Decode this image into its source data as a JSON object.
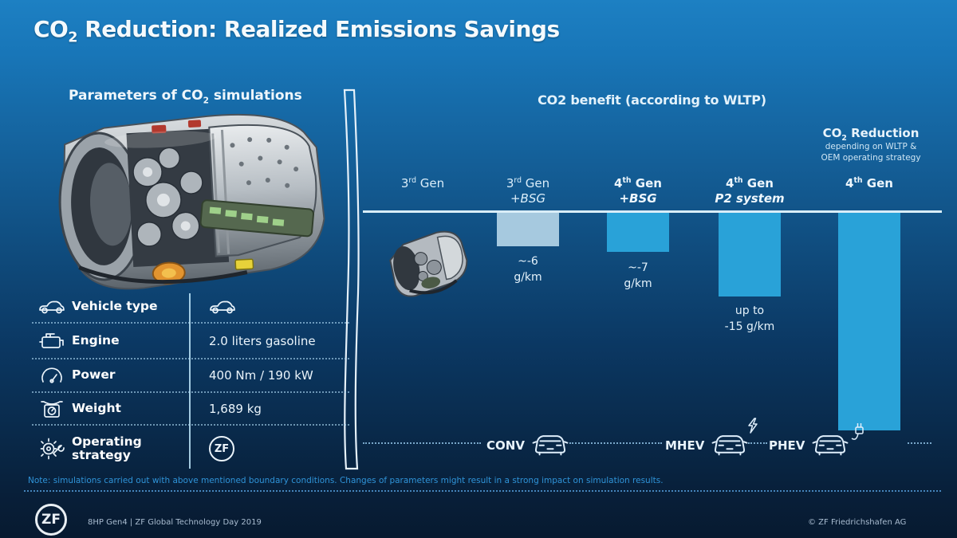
{
  "brand": "ZF",
  "title": {
    "co": "CO",
    "sub": "2",
    "rest": " Reduction: Realized Emissions Savings"
  },
  "params": {
    "heading": {
      "pre": "Parameters of CO",
      "sub": "2",
      "post": " simulations"
    },
    "rows": [
      {
        "icon": "car-side-icon",
        "label": "Vehicle type",
        "value": "",
        "value_icon": "car-side-icon"
      },
      {
        "icon": "engine-icon",
        "label": "Engine",
        "value": "2.0 liters gasoline",
        "value_icon": ""
      },
      {
        "icon": "gauge-icon",
        "label": "Power",
        "value": "400 Nm / 190 kW",
        "value_icon": ""
      },
      {
        "icon": "scale-icon",
        "label": "Weight",
        "value": "1,689 kg",
        "value_icon": ""
      },
      {
        "icon": "gear-wrench-icon",
        "label": "Operating strategy",
        "value": "",
        "value_icon": "zf-logo"
      }
    ]
  },
  "chart": {
    "heading": "CO2 benefit (according to WLTP)",
    "annotation": {
      "co": "CO",
      "sub": "2",
      "rest": " Reduction",
      "line2": "depending on WLTP &",
      "line3": "OEM operating strategy"
    },
    "columns": [
      {
        "gen_num": "3",
        "gen_ord": "rd",
        "gen_word": "Gen",
        "subtitle": "",
        "depth_gkm": 0,
        "bar_color": "",
        "label_line1": "",
        "label_line2": ""
      },
      {
        "gen_num": "3",
        "gen_ord": "rd",
        "gen_word": "Gen",
        "subtitle": "+BSG",
        "depth_gkm": 6,
        "bar_color": "#a6c9df",
        "label_line1": "~-6",
        "label_line2": "g/km"
      },
      {
        "gen_num": "4",
        "gen_ord": "th",
        "gen_word": "Gen",
        "subtitle": "+BSG",
        "depth_gkm": 7,
        "bar_color": "#29a2d8",
        "label_line1": "~-7",
        "label_line2": "g/km"
      },
      {
        "gen_num": "4",
        "gen_ord": "th",
        "gen_word": "Gen",
        "subtitle": "P2 system",
        "depth_gkm": 15,
        "bar_color": "#29a2d8",
        "label_line1": "up to",
        "label_line2": "-15 g/km"
      },
      {
        "gen_num": "4",
        "gen_ord": "th",
        "gen_word": "Gen",
        "subtitle": "",
        "depth_gkm": 39,
        "bar_color": "#29a2d8",
        "label_line1": "",
        "label_line2": ""
      }
    ],
    "powertrains": [
      {
        "label": "CONV",
        "icon": "car-front-icon"
      },
      {
        "label": "MHEV",
        "icon": "car-front-bolt-icon"
      },
      {
        "label": "PHEV",
        "icon": "car-front-plug-icon"
      }
    ]
  },
  "chart_data": {
    "type": "bar",
    "title": "CO2 benefit (according to WLTP)",
    "categories": [
      "3rd Gen",
      "3rd Gen +BSG",
      "4th Gen +BSG",
      "4th Gen P2 system",
      "4th Gen"
    ],
    "series": [
      {
        "name": "CO2 reduction vs 3rd Gen baseline (g/km, WLTP)",
        "values": [
          0,
          -6,
          -7,
          -15,
          null
        ]
      }
    ],
    "value_labels": [
      "",
      "~-6 g/km",
      "~-7 g/km",
      "up to -15 g/km",
      "CO2 Reduction depending on WLTP & OEM operating strategy"
    ],
    "powertrain_axis": [
      "CONV",
      "",
      "",
      "MHEV",
      "PHEV"
    ],
    "orientation": "bars hang downward from a horizontal baseline",
    "bar_colors": [
      "",
      "#a6c9df",
      "#29a2d8",
      "#29a2d8",
      "#29a2d8"
    ],
    "legend": "none",
    "grid": "off",
    "notes": "3rd Gen is the baseline (transmission photo shown instead of a bar); 4th Gen PHEV bar is the deepest and is unquantified, depending on WLTP & OEM operating strategy"
  },
  "note": "Note: simulations carried out with above mentioned boundary conditions. Changes of parameters might result in a strong impact on simulation results.",
  "footer": {
    "left": "8HP Gen4 | ZF Global Technology Day 2019",
    "right": "© ZF Friedrichshafen AG"
  }
}
